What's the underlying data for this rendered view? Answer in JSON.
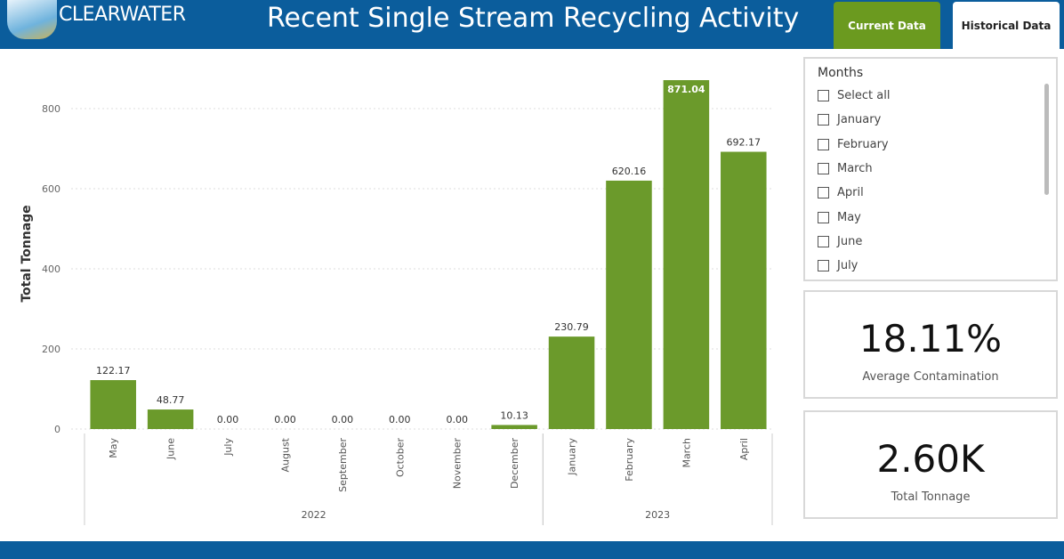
{
  "header": {
    "logo": "CLEARWATER",
    "title": "Recent Single Stream Recycling Activity",
    "tabs": [
      "Current Data",
      "Historical Data"
    ]
  },
  "chart_data": {
    "type": "bar",
    "y_label": "Total Tonnage",
    "categories": [
      "May",
      "June",
      "July",
      "August",
      "September",
      "October",
      "November",
      "December",
      "January",
      "February",
      "March",
      "April"
    ],
    "category_groups": [
      "2022",
      "2022",
      "2022",
      "2022",
      "2022",
      "2022",
      "2022",
      "2022",
      "2023",
      "2023",
      "2023",
      "2023"
    ],
    "values": [
      122.17,
      48.77,
      0,
      0,
      0,
      0,
      0,
      10.13,
      230.79,
      620.16,
      871.04,
      692.17
    ],
    "value_labels": [
      "122.17",
      "48.77",
      "0.00",
      "0.00",
      "0.00",
      "0.00",
      "0.00",
      "10.13",
      "230.79",
      "620.16",
      "871.04",
      "692.17"
    ],
    "color": "#6b9a2b",
    "ylim": [
      0,
      900
    ],
    "yticks": [
      0,
      200,
      400,
      600,
      800
    ],
    "grid": true
  },
  "slicer": {
    "title": "Months",
    "items": [
      "Select all",
      "January",
      "February",
      "March",
      "April",
      "May",
      "June",
      "July"
    ]
  },
  "cards": [
    {
      "value": "18.11%",
      "label": "Average Contamination"
    },
    {
      "value": "2.60K",
      "label": "Total Tonnage"
    }
  ]
}
